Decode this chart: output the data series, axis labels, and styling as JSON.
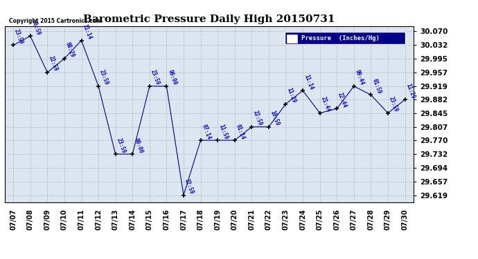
{
  "title": "Barometric Pressure Daily High 20150731",
  "copyright": "Copyright 2015 Cartronics.com",
  "legend_label": "Pressure  (Inches/Hg)",
  "background_color": "#ffffff",
  "plot_bg_color": "#dce6f1",
  "grid_color": "#aaaaaa",
  "line_color": "#00008b",
  "marker_color": "#000000",
  "text_color": "#0000cc",
  "legend_bg": "#00008b",
  "legend_text": "#ffffff",
  "yticks": [
    29.619,
    29.657,
    29.694,
    29.732,
    29.77,
    29.807,
    29.845,
    29.882,
    29.919,
    29.957,
    29.995,
    30.032,
    30.07
  ],
  "ylim_min": 29.6,
  "ylim_max": 30.085,
  "dates": [
    "07/07",
    "07/08",
    "07/09",
    "07/10",
    "07/11",
    "07/12",
    "07/13",
    "07/14",
    "07/15",
    "07/16",
    "07/17",
    "07/18",
    "07/19",
    "07/20",
    "07/21",
    "07/22",
    "07/23",
    "07/24",
    "07/25",
    "07/26",
    "07/27",
    "07/28",
    "07/29",
    "07/30"
  ],
  "values": [
    30.032,
    30.057,
    29.957,
    29.995,
    30.045,
    29.919,
    29.732,
    29.732,
    29.919,
    29.919,
    29.657,
    29.77,
    29.77,
    29.77,
    29.807,
    29.807,
    29.845,
    29.907,
    29.845,
    29.857,
    29.919,
    29.895,
    29.845,
    29.882
  ],
  "time_labels": [
    "23:59",
    "08:59",
    "22:59",
    "08:29",
    "11:14",
    "23:59",
    "23:59",
    "00:00",
    "23:59",
    "00:00",
    "22:59",
    "07:14",
    "11:59",
    "01:14",
    "22:59",
    "10:59",
    "11:29",
    "11:14",
    "21:44",
    "22:44",
    "09:44",
    "01:59",
    "23:59",
    "11:29"
  ]
}
